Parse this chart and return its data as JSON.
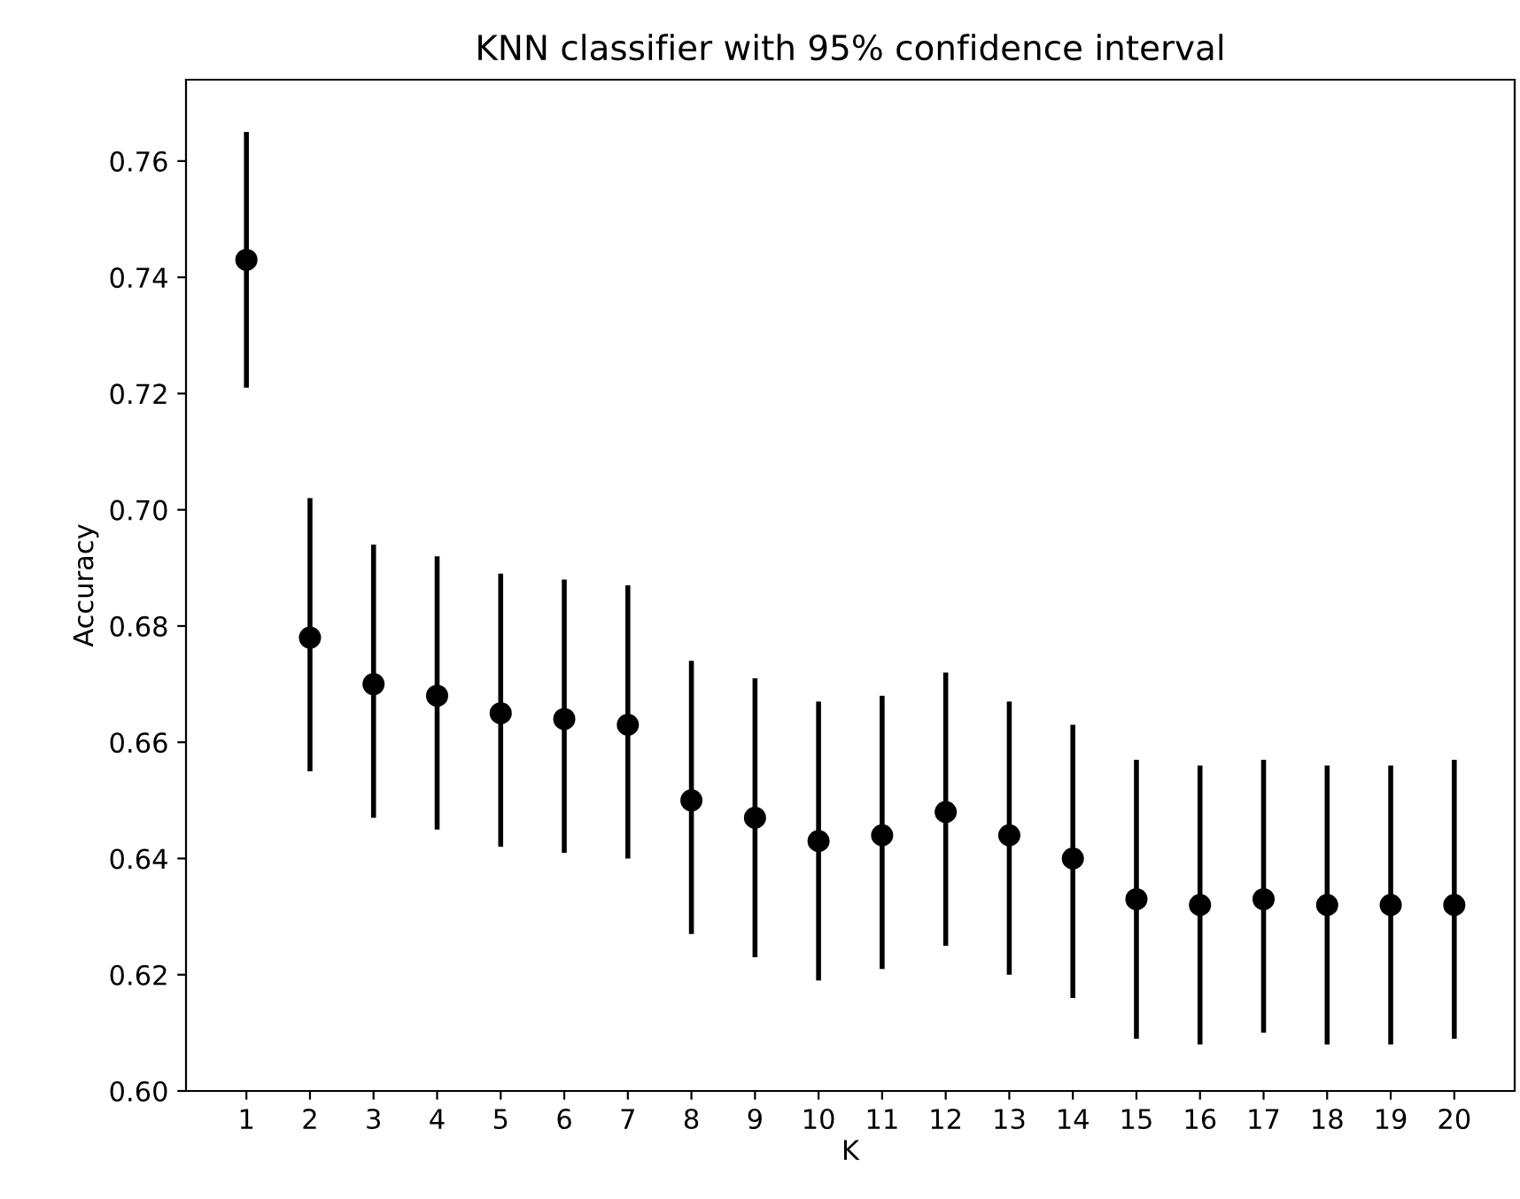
{
  "chart_data": {
    "type": "scatter",
    "title": "KNN classifier with 95% confidence interval",
    "xlabel": "K",
    "ylabel": "Accuracy",
    "x": [
      1,
      2,
      3,
      4,
      5,
      6,
      7,
      8,
      9,
      10,
      11,
      12,
      13,
      14,
      15,
      16,
      17,
      18,
      19,
      20
    ],
    "series": [
      {
        "color": "#000000",
        "values": [
          0.743,
          0.678,
          0.67,
          0.668,
          0.665,
          0.664,
          0.663,
          0.65,
          0.647,
          0.643,
          0.644,
          0.648,
          0.644,
          0.64,
          0.633,
          0.632,
          0.633,
          0.632,
          0.632,
          0.632
        ],
        "errors": [
          [
            0.721,
            0.765
          ],
          [
            0.655,
            0.702
          ],
          [
            0.647,
            0.694
          ],
          [
            0.645,
            0.692
          ],
          [
            0.642,
            0.689
          ],
          [
            0.641,
            0.688
          ],
          [
            0.64,
            0.687
          ],
          [
            0.627,
            0.674
          ],
          [
            0.623,
            0.671
          ],
          [
            0.619,
            0.667
          ],
          [
            0.621,
            0.668
          ],
          [
            0.625,
            0.672
          ],
          [
            0.62,
            0.667
          ],
          [
            0.616,
            0.663
          ],
          [
            0.609,
            0.657
          ],
          [
            0.608,
            0.656
          ],
          [
            0.61,
            0.657
          ],
          [
            0.608,
            0.656
          ],
          [
            0.608,
            0.656
          ],
          [
            0.609,
            0.657
          ]
        ]
      }
    ],
    "xlim": [
      0.05,
      20.95
    ],
    "xticks": [
      1,
      2,
      3,
      4,
      5,
      6,
      7,
      8,
      9,
      10,
      11,
      12,
      13,
      14,
      15,
      16,
      17,
      18,
      19,
      20
    ],
    "ylim": [
      0.6,
      0.774
    ],
    "yticks": [
      {
        "value": 0.6,
        "label": "0.60"
      },
      {
        "value": 0.62,
        "label": "0.62"
      },
      {
        "value": 0.64,
        "label": "0.64"
      },
      {
        "value": 0.66,
        "label": "0.66"
      },
      {
        "value": 0.68,
        "label": "0.68"
      },
      {
        "value": 0.7,
        "label": "0.70"
      },
      {
        "value": 0.72,
        "label": "0.72"
      },
      {
        "value": 0.74,
        "label": "0.74"
      },
      {
        "value": 0.76,
        "label": "0.76"
      }
    ],
    "marker": "circle",
    "grid": false,
    "legend": false
  }
}
